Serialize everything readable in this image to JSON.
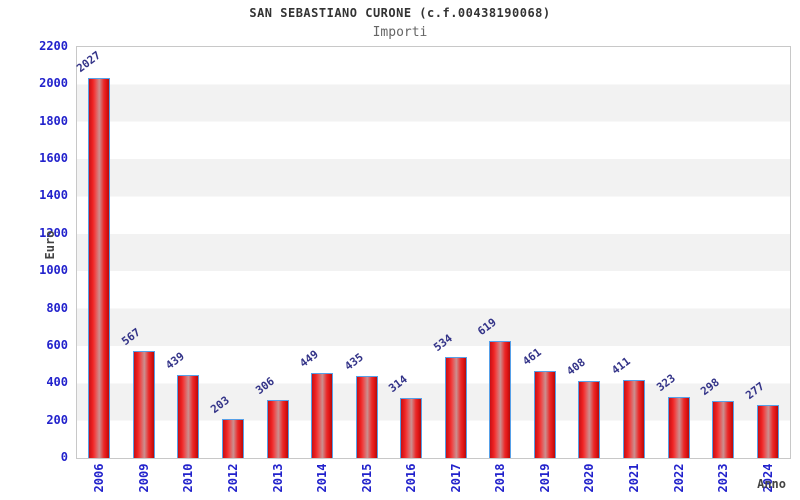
{
  "header": {
    "title": "SAN SEBASTIANO CURONE (c.f.00438190068)",
    "subtitle": "Importi"
  },
  "chart_data": {
    "type": "bar",
    "title": "SAN SEBASTIANO CURONE (c.f.00438190068)",
    "subtitle": "Importi",
    "xlabel": "Anno",
    "ylabel": "Euro",
    "categories": [
      "2006",
      "2009",
      "2010",
      "2012",
      "2013",
      "2014",
      "2015",
      "2016",
      "2017",
      "2018",
      "2019",
      "2020",
      "2021",
      "2022",
      "2023",
      "2024"
    ],
    "values": [
      2027,
      567,
      439,
      203,
      306,
      449,
      435,
      314,
      534,
      619,
      461,
      408,
      411,
      323,
      298,
      277
    ],
    "ylim": [
      0,
      2200
    ],
    "yticks": [
      0,
      200,
      400,
      600,
      800,
      1000,
      1200,
      1400,
      1600,
      1800,
      2000,
      2200
    ],
    "grid": "alternating horizontal bands every 200",
    "legend": "none",
    "bar_labels_rotated": true,
    "colors": {
      "bar_fill": "#e41c1c",
      "bar_border": "#56a0e8",
      "tick_label": "#2222cc",
      "value_label": "#333388",
      "band_stripe": "#f2f2f2",
      "plot_border": "#c8c8c8",
      "title": "#333333",
      "subtitle": "#666666",
      "axis_title": "#444444"
    }
  }
}
